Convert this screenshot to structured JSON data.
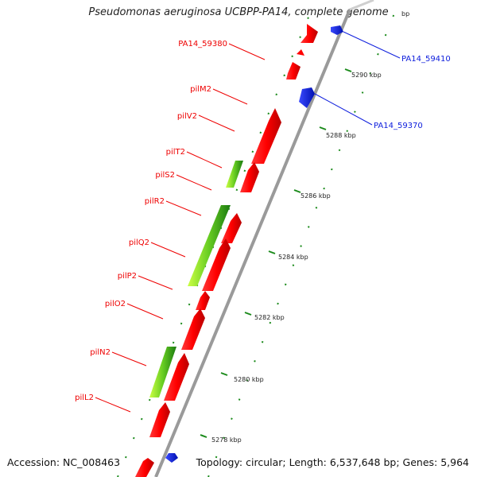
{
  "title": "Pseudomonas aeruginosa UCBPP-PA14, complete genome",
  "footer": {
    "accession": "Accession: NC_008463",
    "summary": "Topology: circular; Length: 6,537,648 bp; Genes: 5,964"
  },
  "colors": {
    "forward_gene": "#ff1010",
    "reverse_gene": "#1020ff",
    "rna_feature": "#66cc22",
    "tick": "#1a8a1a",
    "backbone": "#9a9a9a"
  },
  "scale": {
    "unit": "kbp",
    "labels": [
      "5278 kbp",
      "5280 kbp",
      "5282 kbp",
      "5284 kbp",
      "5286 kbp",
      "5288 kbp",
      "5290 kbp"
    ],
    "partial_label": "bp"
  },
  "left_labels": [
    "PA14_59380",
    "pilM2",
    "pilV2",
    "pilT2",
    "pilS2",
    "pilR2",
    "pilQ2",
    "pilP2",
    "pilO2",
    "pilN2",
    "pilL2"
  ],
  "right_labels": [
    "PA14_59410",
    "PA14_59370"
  ]
}
